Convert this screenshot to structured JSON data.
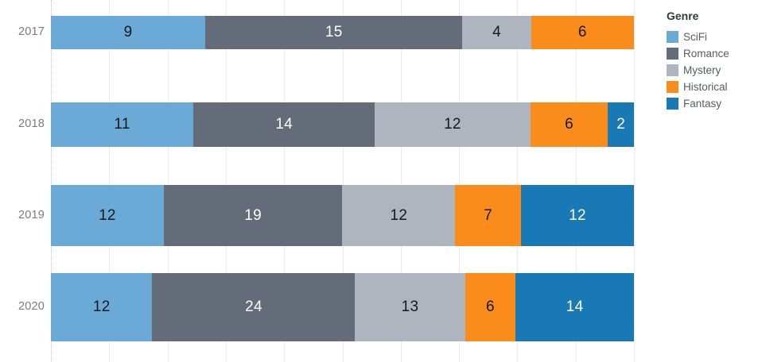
{
  "chart_data": {
    "type": "bar",
    "subtype": "horizontal-100pct-stacked",
    "title": "",
    "categories": [
      "2017",
      "2018",
      "2019",
      "2020"
    ],
    "series": [
      {
        "name": "SciFi",
        "color": "#6BAAD6",
        "label_color": "#15191e",
        "values": [
          9,
          11,
          12,
          12
        ]
      },
      {
        "name": "Romance",
        "color": "#646B79",
        "label_color": "#ffffff",
        "values": [
          15,
          14,
          19,
          24
        ]
      },
      {
        "name": "Mystery",
        "color": "#AFB5BF",
        "label_color": "#15191e",
        "values": [
          4,
          12,
          12,
          13
        ]
      },
      {
        "name": "Historical",
        "color": "#F98C1B",
        "label_color": "#15191e",
        "values": [
          6,
          6,
          7,
          6
        ]
      },
      {
        "name": "Fantasy",
        "color": "#1879B4",
        "label_color": "#ffffff",
        "values": [
          0,
          2,
          12,
          14
        ]
      }
    ],
    "totals": [
      34,
      45,
      62,
      69
    ],
    "bar_thickness_encodes_total": true,
    "legend": {
      "title": "Genre",
      "position": "top-right",
      "entries": [
        "SciFi",
        "Romance",
        "Mystery",
        "Historical",
        "Fantasy"
      ]
    },
    "x_axis": {
      "range_pct": [
        0,
        100
      ],
      "gridline_interval_pct": 10,
      "tick_labels_visible": false
    },
    "grid": true,
    "colors": {
      "gridline": "#ececec",
      "axis_dotted": "#c4c4c4",
      "year_label": "#7b7b7b",
      "legend_title": "#33373d",
      "legend_label": "#575c63"
    }
  }
}
